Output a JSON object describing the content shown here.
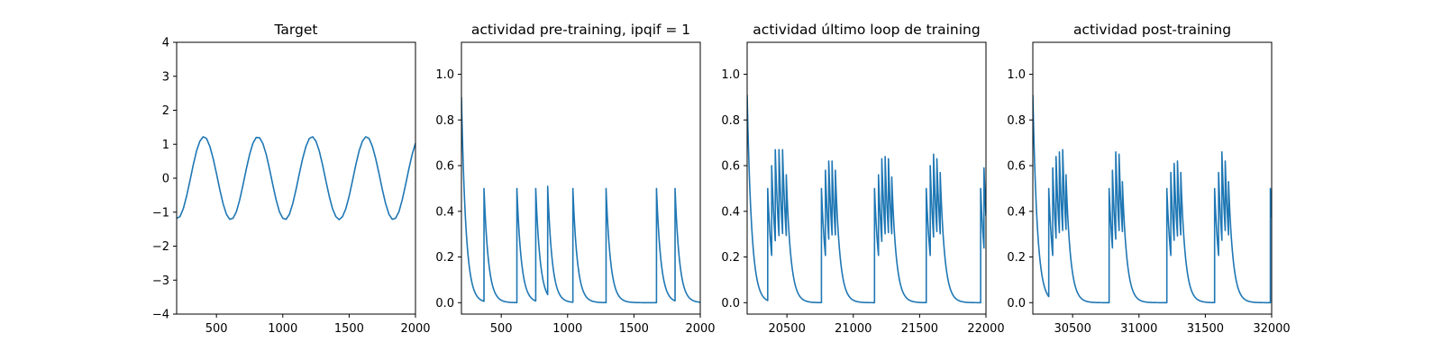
{
  "chart_data": [
    {
      "type": "line",
      "title": "Target",
      "xlabel": "",
      "ylabel": "",
      "xlim": [
        200,
        2000
      ],
      "ylim": [
        -4,
        4
      ],
      "xticks": [
        500,
        1000,
        1500,
        2000
      ],
      "yticks": [
        -4,
        -3,
        -2,
        -1,
        0,
        1,
        2,
        3,
        4
      ],
      "grid": false,
      "color": "#1f77b4",
      "series": [
        {
          "x": [
            200,
            225,
            250,
            275,
            300,
            325,
            350,
            375,
            400,
            425,
            450,
            475,
            500,
            525,
            550,
            575,
            600,
            625,
            650,
            675,
            700,
            725,
            750,
            775,
            800,
            825,
            850,
            875,
            900,
            925,
            950,
            975,
            1000,
            1025,
            1050,
            1075,
            1100,
            1125,
            1150,
            1175,
            1200,
            1225,
            1250,
            1275,
            1300,
            1325,
            1350,
            1375,
            1400,
            1425,
            1450,
            1475,
            1500,
            1525,
            1550,
            1575,
            1600,
            1625,
            1650,
            1675,
            1700,
            1725,
            1750,
            1775,
            1800,
            1825,
            1850,
            1875,
            1900,
            1925,
            1950,
            1975,
            2000
          ],
          "y": [
            -1.18,
            -1.13,
            -0.9,
            -0.53,
            -0.08,
            0.39,
            0.8,
            1.09,
            1.22,
            1.17,
            0.94,
            0.58,
            0.14,
            -0.33,
            -0.75,
            -1.06,
            -1.21,
            -1.18,
            -0.99,
            -0.64,
            -0.2,
            0.27,
            0.7,
            1.03,
            1.2,
            1.19,
            1.02,
            0.7,
            0.27,
            -0.2,
            -0.64,
            -0.99,
            -1.18,
            -1.21,
            -1.06,
            -0.75,
            -0.33,
            0.14,
            0.58,
            0.94,
            1.17,
            1.22,
            1.09,
            0.8,
            0.39,
            -0.08,
            -0.53,
            -0.9,
            -1.13,
            -1.22,
            -1.13,
            -0.9,
            -0.53,
            -0.08,
            0.39,
            0.8,
            1.09,
            1.22,
            1.17,
            0.94,
            0.58,
            0.14,
            -0.33,
            -0.75,
            -1.06,
            -1.21,
            -1.18,
            -0.99,
            -0.64,
            -0.2,
            0.27,
            0.7,
            1.03
          ]
        }
      ]
    },
    {
      "type": "line",
      "title": "actividad pre-training, ipqif = 1",
      "xlabel": "",
      "ylabel": "",
      "xlim": [
        200,
        2000
      ],
      "ylim": [
        -0.05,
        1.14
      ],
      "xticks": [
        500,
        1000,
        1500,
        2000
      ],
      "yticks": [
        0.0,
        0.2,
        0.4,
        0.6,
        0.8,
        1.0
      ],
      "ytick_labels": [
        "0.0",
        "0.2",
        "0.4",
        "0.6",
        "0.8",
        "1.0"
      ],
      "grid": false,
      "color": "#1f77b4",
      "series": [
        {
          "start": [
            200,
            0.9
          ],
          "tau": 34,
          "spikes": [
            [
              370,
              0.5
            ],
            [
              618,
              0.5
            ],
            [
              760,
              0.5
            ],
            [
              850,
              0.51
            ],
            [
              1040,
              0.5
            ],
            [
              1290,
              0.5
            ],
            [
              1670,
              0.5
            ],
            [
              1810,
              0.5
            ]
          ]
        }
      ]
    },
    {
      "type": "line",
      "title": "actividad último loop de training",
      "xlabel": "",
      "ylabel": "",
      "xlim": [
        20200,
        22000
      ],
      "ylim": [
        -0.05,
        1.14
      ],
      "xticks": [
        20500,
        21000,
        21500,
        22000
      ],
      "yticks": [
        0.0,
        0.2,
        0.4,
        0.6,
        0.8,
        1.0
      ],
      "ytick_labels": [
        "0.0",
        "0.2",
        "0.4",
        "0.6",
        "0.8",
        "1.0"
      ],
      "grid": false,
      "color": "#1f77b4",
      "series": [
        {
          "start": [
            20200,
            0.91
          ],
          "tau": 34,
          "spikes": [
            [
              20355,
              0.5
            ],
            [
              20385,
              0.6
            ],
            [
              20412,
              0.67
            ],
            [
              20440,
              0.67
            ],
            [
              20467,
              0.67
            ],
            [
              20495,
              0.56
            ],
            [
              20760,
              0.5
            ],
            [
              20790,
              0.58
            ],
            [
              20815,
              0.62
            ],
            [
              20840,
              0.62
            ],
            [
              20865,
              0.58
            ],
            [
              21160,
              0.5
            ],
            [
              21190,
              0.56
            ],
            [
              21215,
              0.63
            ],
            [
              21240,
              0.64
            ],
            [
              21265,
              0.63
            ],
            [
              21290,
              0.55
            ],
            [
              21550,
              0.5
            ],
            [
              21580,
              0.6
            ],
            [
              21605,
              0.65
            ],
            [
              21630,
              0.63
            ],
            [
              21655,
              0.57
            ],
            [
              21960,
              0.5
            ],
            [
              21985,
              0.59
            ]
          ]
        }
      ]
    },
    {
      "type": "line",
      "title": "actividad post-training",
      "xlabel": "",
      "ylabel": "",
      "xlim": [
        30200,
        32000
      ],
      "ylim": [
        -0.05,
        1.14
      ],
      "xticks": [
        30500,
        31000,
        31500,
        32000
      ],
      "yticks": [
        0.0,
        0.2,
        0.4,
        0.6,
        0.8,
        1.0
      ],
      "ytick_labels": [
        "0.0",
        "0.2",
        "0.4",
        "0.6",
        "0.8",
        "1.0"
      ],
      "grid": false,
      "color": "#1f77b4",
      "series": [
        {
          "start": [
            30200,
            0.91
          ],
          "tau": 34,
          "spikes": [
            [
              30320,
              0.5
            ],
            [
              30350,
              0.59
            ],
            [
              30375,
              0.64
            ],
            [
              30400,
              0.66
            ],
            [
              30425,
              0.67
            ],
            [
              30450,
              0.56
            ],
            [
              30775,
              0.5
            ],
            [
              30800,
              0.58
            ],
            [
              30825,
              0.66
            ],
            [
              30850,
              0.65
            ],
            [
              30875,
              0.53
            ],
            [
              31210,
              0.5
            ],
            [
              31240,
              0.57
            ],
            [
              31265,
              0.61
            ],
            [
              31290,
              0.62
            ],
            [
              31315,
              0.57
            ],
            [
              31570,
              0.5
            ],
            [
              31600,
              0.57
            ],
            [
              31625,
              0.66
            ],
            [
              31650,
              0.62
            ],
            [
              31675,
              0.53
            ],
            [
              31990,
              0.5
            ]
          ]
        }
      ]
    }
  ]
}
